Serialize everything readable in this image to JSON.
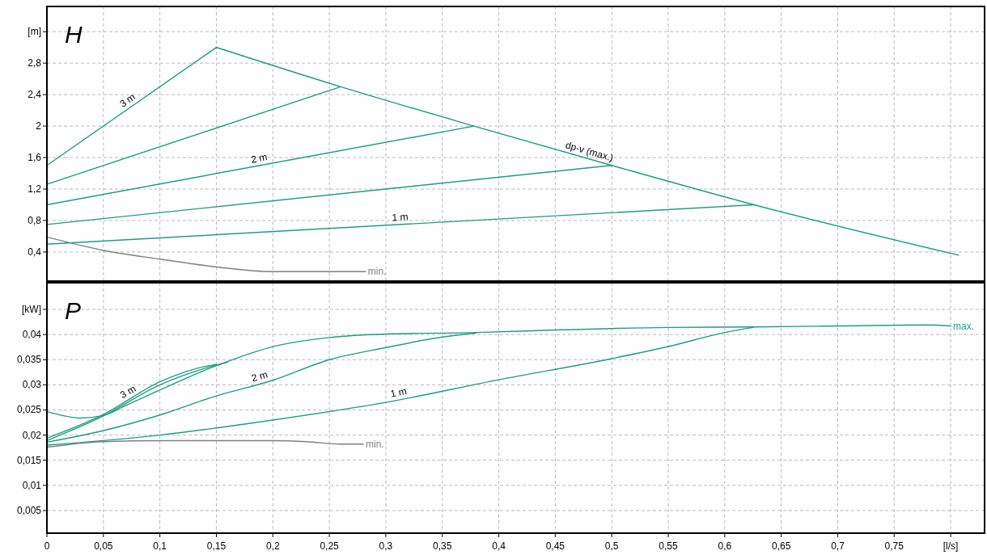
{
  "chart_data": [
    {
      "type": "line",
      "title": "H",
      "xlim": [
        0,
        0.83
      ],
      "ylim": [
        0.03,
        3.52
      ],
      "grid": true,
      "tick_labels": "y",
      "xticks": [
        {
          "value": 0.05,
          "label": null
        },
        {
          "value": 0.1,
          "label": null
        },
        {
          "value": 0.15,
          "label": null
        },
        {
          "value": 0.2,
          "label": null
        },
        {
          "value": 0.25,
          "label": null
        },
        {
          "value": 0.3,
          "label": null
        },
        {
          "value": 0.35,
          "label": null
        },
        {
          "value": 0.4,
          "label": null
        },
        {
          "value": 0.45,
          "label": null
        },
        {
          "value": 0.5,
          "label": null
        },
        {
          "value": 0.55,
          "label": null
        },
        {
          "value": 0.6,
          "label": null
        },
        {
          "value": 0.65,
          "label": null
        },
        {
          "value": 0.7,
          "label": null
        },
        {
          "value": 0.75,
          "label": null
        },
        {
          "value": 0.8,
          "label": null
        }
      ],
      "yticks": [
        {
          "value": 0.4,
          "label": "0,4"
        },
        {
          "value": 0.8,
          "label": "0,8"
        },
        {
          "value": 1.2,
          "label": "1,2"
        },
        {
          "value": 1.6,
          "label": "1,6"
        },
        2,
        {
          "value": 2.4,
          "label": "2,4"
        },
        {
          "value": 2.8,
          "label": "2,8"
        },
        {
          "value": 3.2,
          "label": "[m]"
        }
      ],
      "series": [
        {
          "name": "3 m",
          "color": "#1f9c82",
          "x": [
            0,
            0.15
          ],
          "values": [
            1.5,
            3.0
          ]
        },
        {
          "color": "#1f9c82",
          "x": [
            0,
            0.26
          ],
          "values": [
            1.26,
            2.5
          ]
        },
        {
          "name": "2 m",
          "color": "#1f9c82",
          "x": [
            0,
            0.378
          ],
          "values": [
            1.0,
            2.0
          ]
        },
        {
          "color": "#1f9c82",
          "x": [
            0,
            0.5
          ],
          "values": [
            0.75,
            1.5
          ]
        },
        {
          "name": "1 m",
          "color": "#1f9c82",
          "x": [
            0,
            0.626
          ],
          "values": [
            0.5,
            1.0
          ]
        },
        {
          "name": "dp-v (max.)",
          "color": "#1f9c82",
          "x": [
            0.15,
            0.26,
            0.378,
            0.5,
            0.626,
            0.807
          ],
          "values": [
            3.0,
            2.5,
            2.0,
            1.5,
            1.0,
            0.36
          ]
        },
        {
          "name": "min.",
          "color": "#808080",
          "x": [
            0,
            0.05,
            0.1,
            0.15,
            0.2,
            0.225,
            0.282
          ],
          "values": [
            0.59,
            0.42,
            0.31,
            0.21,
            0.15,
            0.15,
            0.15
          ]
        }
      ]
    },
    {
      "type": "line",
      "title": "P",
      "xlim": [
        0,
        0.83
      ],
      "ylim": [
        0.0005,
        0.0503
      ],
      "grid": true,
      "xticks": [
        0,
        {
          "value": 0.05,
          "label": "0,05"
        },
        {
          "value": 0.1,
          "label": "0,1"
        },
        {
          "value": 0.15,
          "label": "0,15"
        },
        {
          "value": 0.2,
          "label": "0,2"
        },
        {
          "value": 0.25,
          "label": "0,25"
        },
        {
          "value": 0.3,
          "label": "0,3"
        },
        {
          "value": 0.35,
          "label": "0,35"
        },
        {
          "value": 0.4,
          "label": "0,4"
        },
        {
          "value": 0.45,
          "label": "0,45"
        },
        {
          "value": 0.5,
          "label": "0,5"
        },
        {
          "value": 0.55,
          "label": "0,55"
        },
        {
          "value": 0.6,
          "label": "0,6"
        },
        {
          "value": 0.65,
          "label": "0,65"
        },
        {
          "value": 0.7,
          "label": "0,7"
        },
        {
          "value": 0.75,
          "label": "0,75"
        },
        {
          "value": 0.8,
          "label": "[l/s]"
        }
      ],
      "yticks": [
        {
          "value": 0.005,
          "label": "0,005"
        },
        {
          "value": 0.01,
          "label": "0,01"
        },
        {
          "value": 0.015,
          "label": "0,015"
        },
        {
          "value": 0.02,
          "label": "0,02"
        },
        {
          "value": 0.025,
          "label": "0,025"
        },
        {
          "value": 0.03,
          "label": "0,03"
        },
        {
          "value": 0.035,
          "label": "0,035"
        },
        {
          "value": 0.04,
          "label": "0,04"
        },
        {
          "value": 0.045,
          "label": "[kW]"
        }
      ],
      "series": [
        {
          "name": "3 m",
          "color": "#1f9c82",
          "x": [
            0,
            0.05,
            0.1,
            0.13,
            0.15
          ],
          "values": [
            0.0194,
            0.0241,
            0.0306,
            0.0331,
            0.0341
          ]
        },
        {
          "color": "#1f9c82",
          "x": [
            0,
            0.05,
            0.1,
            0.14,
            0.16
          ],
          "values": [
            0.0189,
            0.0238,
            0.03,
            0.0333,
            0.0345
          ]
        },
        {
          "name": "2 m",
          "color": "#1f9c82",
          "x": [
            0,
            0.05,
            0.1,
            0.15,
            0.2,
            0.25,
            0.3,
            0.35,
            0.38
          ],
          "values": [
            0.0186,
            0.0209,
            0.024,
            0.0278,
            0.0309,
            0.035,
            0.0374,
            0.0395,
            0.0403
          ]
        },
        {
          "name": "1 m",
          "color": "#1f9c82",
          "x": [
            0,
            0.1,
            0.2,
            0.3,
            0.4,
            0.5,
            0.55,
            0.6,
            0.625
          ],
          "values": [
            0.018,
            0.02,
            0.023,
            0.0265,
            0.031,
            0.0352,
            0.0376,
            0.0404,
            0.0414
          ]
        },
        {
          "name": "max.",
          "color": "#1f9c82",
          "x": [
            0,
            0.03,
            0.05,
            0.07,
            0.15,
            0.2,
            0.25,
            0.3,
            0.38,
            0.45,
            0.55,
            0.625,
            0.7,
            0.78,
            0.8
          ],
          "values": [
            0.0247,
            0.0234,
            0.0239,
            0.0259,
            0.0338,
            0.0376,
            0.0394,
            0.0401,
            0.0404,
            0.0409,
            0.0414,
            0.0415,
            0.0417,
            0.0419,
            0.0417
          ]
        },
        {
          "name": "min.",
          "color": "#808080",
          "x": [
            0,
            0.05,
            0.1,
            0.2,
            0.23,
            0.26,
            0.28
          ],
          "values": [
            0.0176,
            0.0187,
            0.0189,
            0.0189,
            0.0187,
            0.0182,
            0.0182
          ]
        }
      ]
    }
  ]
}
